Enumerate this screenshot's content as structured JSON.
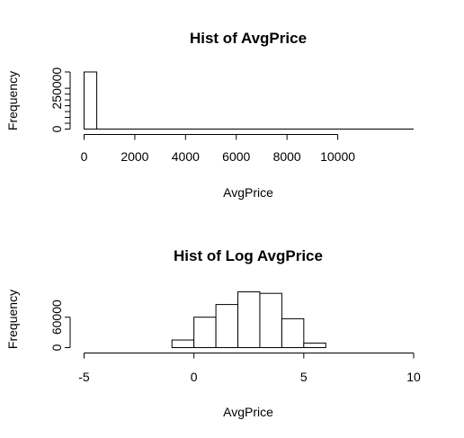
{
  "chart_data": [
    {
      "type": "bar",
      "title": "Hist of AvgPrice",
      "xlabel": "AvgPrice",
      "ylabel": "Frequency",
      "x_ticks": [
        0,
        2000,
        4000,
        6000,
        8000,
        10000
      ],
      "y_ticks": [
        0,
        250000
      ],
      "xlim": [
        0,
        12000
      ],
      "ylim": [
        0,
        350000
      ],
      "bin_width": 500,
      "bins": [
        {
          "x0": 0,
          "x1": 500,
          "count": 350000
        }
      ],
      "extends_to": 13000
    },
    {
      "type": "bar",
      "title": "Hist of Log AvgPrice",
      "xlabel": "AvgPrice",
      "ylabel": "Frequency",
      "x_ticks": [
        -5,
        0,
        5,
        10
      ],
      "y_ticks": [
        0,
        60000
      ],
      "xlim": [
        -5,
        10
      ],
      "ylim": [
        0,
        110000
      ],
      "bin_width": 1,
      "bins": [
        {
          "x0": -5,
          "x1": -4,
          "count": 0
        },
        {
          "x0": -4,
          "x1": -3,
          "count": 0
        },
        {
          "x0": -3,
          "x1": -2,
          "count": 0
        },
        {
          "x0": -2,
          "x1": -1,
          "count": 0
        },
        {
          "x0": -1,
          "x1": 0,
          "count": 15000
        },
        {
          "x0": 0,
          "x1": 1,
          "count": 60000
        },
        {
          "x0": 1,
          "x1": 2,
          "count": 85000
        },
        {
          "x0": 2,
          "x1": 3,
          "count": 110000
        },
        {
          "x0": 3,
          "x1": 4,
          "count": 107000
        },
        {
          "x0": 4,
          "x1": 5,
          "count": 57000
        },
        {
          "x0": 5,
          "x1": 6,
          "count": 9000
        },
        {
          "x0": 6,
          "x1": 7,
          "count": 0
        },
        {
          "x0": 7,
          "x1": 8,
          "count": 0
        },
        {
          "x0": 8,
          "x1": 9,
          "count": 0
        },
        {
          "x0": 9,
          "x1": 10,
          "count": 0
        }
      ]
    }
  ]
}
